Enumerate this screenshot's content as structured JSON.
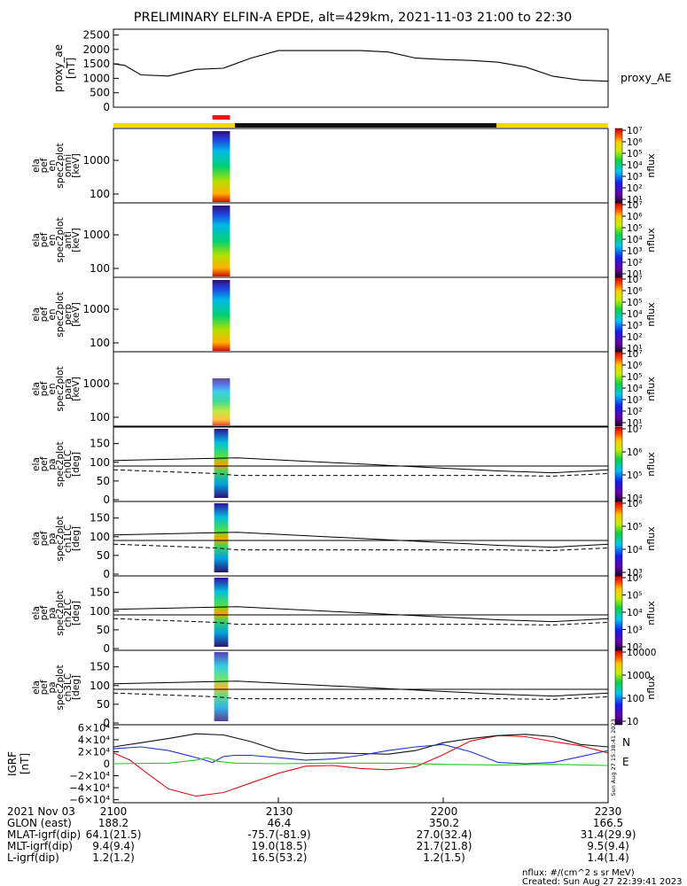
{
  "chart_data": {
    "type": "line",
    "title": "PRELIMINARY ELFIN-A EPDE, alt=429km, 2021-11-03 21:00 to 22:30",
    "time_axis": {
      "start": "21:00",
      "end": "22:30"
    },
    "bars": {
      "colors": {
        "yellow": "#f5d90a",
        "black": "#111111",
        "red": "#ee1111"
      },
      "segments": [
        {
          "color": "yellow",
          "from_min": 0.0,
          "to_min": 22.1
        },
        {
          "color": "black",
          "from_min": 22.1,
          "to_min": 69.7
        },
        {
          "color": "yellow",
          "from_min": 69.7,
          "to_min": 90.0
        }
      ],
      "red_marker": {
        "from_min": 18.0,
        "to_min": 21.2
      }
    },
    "ae_panel": {
      "ylabel_lines": [
        "proxy_ae",
        "[nT]"
      ],
      "yticks": [
        "2500",
        "2000",
        "1500",
        "1000",
        "500",
        "0"
      ],
      "ylim": [
        0,
        2700
      ],
      "series_label": "proxy_AE",
      "series": {
        "t_min": [
          0,
          2,
          5,
          10,
          15,
          20,
          25,
          30,
          35,
          40,
          45,
          50,
          55,
          60,
          65,
          70,
          75,
          80,
          85,
          90
        ],
        "values": [
          1500,
          1450,
          1120,
          1080,
          1310,
          1350,
          1700,
          1960,
          1960,
          1960,
          1960,
          1910,
          1700,
          1650,
          1620,
          1560,
          1390,
          1070,
          940,
          900
        ]
      }
    },
    "energy_panels": [
      {
        "ylabel_lines": [
          "ela",
          "pef",
          "en",
          "spec2plot",
          "omni",
          "[keV]"
        ],
        "yticks": [
          "1000",
          "100"
        ],
        "cbar_ticks": [
          "10⁷",
          "10⁶",
          "10⁵",
          "10⁴",
          "10³",
          "10²",
          "10¹"
        ],
        "cbar_label": "nflux"
      },
      {
        "ylabel_lines": [
          "ela",
          "pef",
          "en",
          "spec2plot",
          "anti",
          "[keV]"
        ],
        "yticks": [
          "1000",
          "100"
        ],
        "cbar_ticks": [
          "10⁷",
          "10⁶",
          "10⁵",
          "10⁴",
          "10³",
          "10²",
          "10¹"
        ],
        "cbar_label": "nflux"
      },
      {
        "ylabel_lines": [
          "ela",
          "pef",
          "en",
          "spec2plot",
          "perp",
          "[keV]"
        ],
        "yticks": [
          "1000",
          "100"
        ],
        "cbar_ticks": [
          "10⁷",
          "10⁶",
          "10⁵",
          "10⁴",
          "10³",
          "10²",
          "10¹"
        ],
        "cbar_label": "nflux"
      },
      {
        "ylabel_lines": [
          "ela",
          "pef",
          "en",
          "spec2plot",
          "para",
          "[keV]"
        ],
        "yticks": [
          "1000",
          "100"
        ],
        "cbar_ticks": [
          "10⁷",
          "10⁶",
          "10⁵",
          "10⁴",
          "10³",
          "10²",
          "10¹"
        ],
        "cbar_label": "nflux"
      }
    ],
    "pa_panels": [
      {
        "ylabel_lines": [
          "ela",
          "pef",
          "pa",
          "spec2plot",
          "ch0LC",
          "[deg]"
        ],
        "yticks": [
          "150",
          "100",
          "50",
          "0"
        ],
        "cbar_ticks": [
          "10⁷",
          "10⁶",
          "10⁵",
          "10⁴"
        ],
        "cbar_label": "nflux"
      },
      {
        "ylabel_lines": [
          "ela",
          "pef",
          "pa",
          "spec2plot",
          "ch1LC",
          "[deg]"
        ],
        "yticks": [
          "150",
          "100",
          "50",
          "0"
        ],
        "cbar_ticks": [
          "10⁶",
          "10⁵",
          "10⁴",
          "10³"
        ],
        "cbar_label": "nflux"
      },
      {
        "ylabel_lines": [
          "ela",
          "pef",
          "pa",
          "spec2plot",
          "ch2LC",
          "[deg]"
        ],
        "yticks": [
          "150",
          "100",
          "50",
          "0"
        ],
        "cbar_ticks": [
          "10⁶",
          "10⁵",
          "10⁴",
          "10³",
          "10²"
        ],
        "cbar_label": "nflux"
      },
      {
        "ylabel_lines": [
          "ela",
          "pef",
          "pa",
          "spec2plot",
          "ch3LC",
          "[deg]"
        ],
        "yticks": [
          "150",
          "100",
          "50",
          "0"
        ],
        "cbar_ticks": [
          "10000",
          "1000",
          "100",
          "10"
        ],
        "cbar_label": "nflux"
      }
    ],
    "pa_lines": {
      "solid_upper": {
        "t_min": [
          0,
          22.5,
          70,
          80,
          90
        ],
        "values": [
          105,
          112,
          77,
          72,
          80
        ]
      },
      "solid_lower": {
        "t_min": [
          0,
          90
        ],
        "values": [
          90,
          90
        ]
      },
      "dashed": {
        "t_min": [
          0,
          18.5,
          22.5,
          70,
          80,
          90
        ],
        "values": [
          80,
          70,
          65,
          65,
          63,
          70
        ]
      }
    },
    "igrf_panel": {
      "ylabel_lines": [
        "IGRF",
        "[nT]"
      ],
      "yticks": [
        "6×10⁴",
        "4×10⁴",
        "2×10⁴",
        "0",
        "−2×10⁴",
        "−4×10⁴",
        "−6×10⁴"
      ],
      "ylim": [
        -65000,
        65000
      ],
      "series": [
        {
          "name": "N",
          "color": "#e01010",
          "t_min": [
            0,
            3,
            6,
            10,
            15,
            20,
            25,
            30,
            35,
            40,
            45,
            50,
            55,
            60,
            65,
            70,
            75,
            80,
            85,
            90
          ],
          "values": [
            18000,
            6000,
            -15000,
            -42000,
            -54000,
            -48000,
            -32000,
            -16000,
            -4000,
            -3000,
            -8000,
            -10000,
            -5000,
            15000,
            38000,
            47000,
            45000,
            37000,
            30000,
            18000
          ]
        },
        {
          "name": "",
          "color": "#111111",
          "t_min": [
            0,
            5,
            10,
            15,
            20,
            25,
            30,
            35,
            40,
            45,
            50,
            55,
            60,
            65,
            70,
            75,
            80,
            85,
            90
          ],
          "values": [
            28000,
            35000,
            42000,
            50000,
            48000,
            37000,
            22000,
            17000,
            18000,
            17000,
            16000,
            22000,
            35000,
            42000,
            47000,
            49000,
            45000,
            32000,
            28000
          ]
        },
        {
          "name": "",
          "color": "#1a35d8",
          "t_min": [
            0,
            5,
            10,
            13,
            16,
            18,
            20,
            22,
            25,
            30,
            35,
            40,
            45,
            50,
            55,
            60,
            65,
            70,
            75,
            80,
            85,
            90
          ],
          "values": [
            25000,
            28000,
            22000,
            15000,
            8000,
            2000,
            12000,
            14000,
            14000,
            10000,
            6000,
            8000,
            14000,
            22000,
            28000,
            32000,
            20000,
            2000,
            0,
            2000,
            12000,
            22000
          ]
        },
        {
          "name": "E",
          "color": "#22c81e",
          "t_min": [
            0,
            10,
            15,
            17,
            19,
            22,
            30,
            40,
            50,
            60,
            70,
            80,
            90
          ],
          "values": [
            0,
            1000,
            6000,
            10000,
            4000,
            1000,
            0,
            1000,
            1000,
            -1000,
            -2000,
            -1000,
            -3000
          ]
        }
      ],
      "series_labels": [
        {
          "text": "N",
          "color": "#e01010"
        },
        {
          "text": "E",
          "color": "#22c81e"
        }
      ],
      "side_text": "Sun Aug 27 15:38:41 2023"
    },
    "x_axis_rows": [
      {
        "label": "2021 Nov 03",
        "values": [
          "2100",
          "2130",
          "2200",
          "2230"
        ]
      },
      {
        "label": "GLON (east)",
        "values": [
          "188.2",
          "46.4",
          "350.2",
          "166.5"
        ]
      },
      {
        "label": "MLAT-igrf(dip)",
        "values": [
          "64.1(21.5)",
          "-75.7(-81.9)",
          "27.0(32.4)",
          "31.4(29.9)"
        ]
      },
      {
        "label": "MLT-igrf(dip)",
        "values": [
          "9.4(9.4)",
          "19.0(18.5)",
          "21.7(21.8)",
          "9.5(9.4)"
        ]
      },
      {
        "label": "L-igrf(dip)",
        "values": [
          "1.2(1.2)",
          "16.5(53.2)",
          "1.2(1.5)",
          "1.4(1.4)"
        ]
      }
    ],
    "footer": {
      "units": "nflux: #/(cm^2 s sr MeV)",
      "created": "Created: Sun Aug 27 22:39:41 2023"
    }
  }
}
